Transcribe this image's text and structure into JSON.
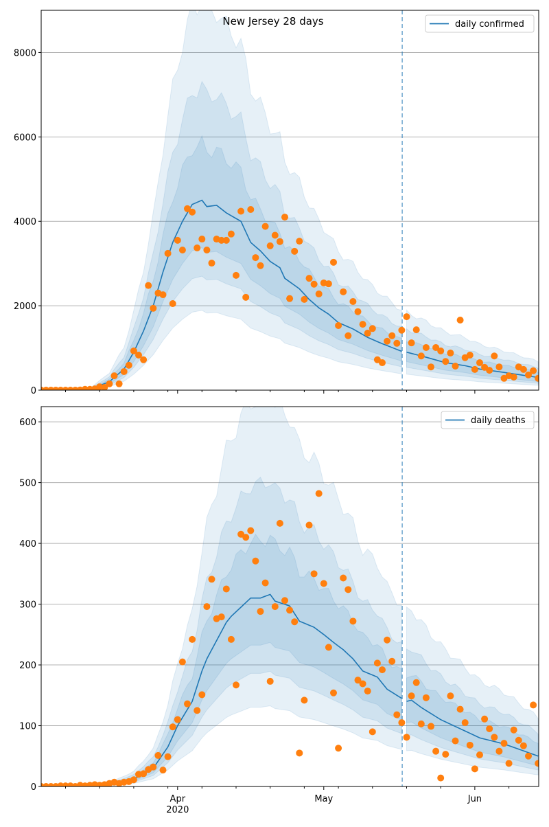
{
  "chart_data": {
    "type": "line",
    "title": "New Jersey 28 days",
    "x_axis": {
      "unit": "days since first plotted day",
      "range": [
        0,
        102
      ],
      "major_ticks": [
        {
          "day": 28,
          "label": "Apr",
          "sublabel": "2020"
        },
        {
          "day": 58,
          "label": "May",
          "sublabel": ""
        },
        {
          "day": 89,
          "label": "Jun",
          "sublabel": ""
        }
      ],
      "minor_tick_days": [
        5,
        12,
        19,
        26,
        33,
        40,
        47,
        54,
        61,
        68,
        75,
        82,
        96
      ],
      "forecast_start_day": 74.1
    },
    "colors": {
      "model": "#1f77b4",
      "observed": "#ff7f0e",
      "band": "#1f77b4",
      "grid": "#b0b0b0"
    },
    "band_multipliers": [
      [
        0.42,
        2.05
      ],
      [
        0.6,
        1.6
      ],
      [
        0.75,
        1.3
      ]
    ],
    "panels": [
      {
        "name": "confirmed",
        "legend": "daily confirmed",
        "legend_position": "top-right",
        "ylim": [
          0,
          9000
        ],
        "yticks": [
          0,
          2000,
          4000,
          6000,
          8000
        ],
        "grid": "horizontal",
        "observed": [
          0,
          0,
          0,
          0,
          0,
          0,
          0,
          0,
          5,
          20,
          20,
          30,
          80,
          65,
          150,
          340,
          150,
          440,
          590,
          930,
          830,
          720,
          2480,
          1940,
          2300,
          2260,
          3240,
          2050,
          3550,
          3320,
          4300,
          4220,
          3370,
          3580,
          3320,
          3010,
          3580,
          3550,
          3550,
          3700,
          2720,
          4240,
          2200,
          4280,
          3140,
          2950,
          3880,
          3420,
          3670,
          3520,
          4100,
          2170,
          3290,
          3530,
          2150,
          2650,
          2510,
          2280,
          2540,
          2520,
          3030,
          1530,
          2330,
          1290,
          2100,
          1860,
          1560,
          1350,
          1460,
          720,
          650,
          1160,
          1290,
          1110,
          1420,
          1740,
          1120,
          1430,
          810,
          1010,
          550,
          1010,
          930,
          680,
          880,
          570,
          1660,
          770,
          830,
          490,
          650,
          540,
          470,
          810,
          550,
          280,
          340,
          310,
          550,
          490,
          360,
          460,
          280
        ],
        "model_fit": [
          [
            0,
            0
          ],
          [
            10,
            20
          ],
          [
            14,
            200
          ],
          [
            17,
            500
          ],
          [
            19,
            900
          ],
          [
            21,
            1400
          ],
          [
            23,
            2000
          ],
          [
            25,
            2800
          ],
          [
            27,
            3500
          ],
          [
            29,
            4000
          ],
          [
            31,
            4400
          ],
          [
            33,
            4500
          ],
          [
            34,
            4350
          ],
          [
            36,
            4380
          ],
          [
            38,
            4200
          ],
          [
            41,
            4000
          ],
          [
            43,
            3500
          ],
          [
            45,
            3300
          ],
          [
            47,
            3050
          ],
          [
            49,
            2900
          ],
          [
            50,
            2650
          ],
          [
            53,
            2400
          ],
          [
            55,
            2150
          ],
          [
            57,
            1950
          ],
          [
            59,
            1800
          ],
          [
            61,
            1600
          ],
          [
            64,
            1450
          ],
          [
            67,
            1250
          ],
          [
            70,
            1100
          ],
          [
            74,
            920
          ]
        ],
        "model_forecast": [
          [
            75,
            900
          ],
          [
            79,
            780
          ],
          [
            83,
            650
          ],
          [
            87,
            580
          ],
          [
            90,
            500
          ],
          [
            95,
            420
          ],
          [
            102,
            300
          ]
        ]
      },
      {
        "name": "deaths",
        "legend": "daily deaths",
        "legend_position": "top-right",
        "ylim": [
          0,
          625
        ],
        "yticks": [
          0,
          100,
          200,
          300,
          400,
          500,
          600
        ],
        "grid": "horizontal",
        "observed": [
          0,
          0,
          0,
          0,
          1,
          1,
          1,
          0,
          2,
          1,
          2,
          3,
          2,
          3,
          5,
          7,
          5,
          7,
          8,
          11,
          20,
          21,
          28,
          32,
          51,
          27,
          49,
          98,
          110,
          205,
          136,
          242,
          125,
          151,
          296,
          341,
          276,
          279,
          325,
          242,
          167,
          415,
          410,
          421,
          371,
          288,
          335,
          173,
          296,
          433,
          306,
          290,
          271,
          55,
          142,
          430,
          350,
          482,
          334,
          229,
          154,
          63,
          343,
          324,
          272,
          175,
          169,
          157,
          90,
          203,
          192,
          241,
          206,
          118,
          105,
          81,
          149,
          171,
          103,
          146,
          99,
          58,
          14,
          53,
          149,
          75,
          127,
          105,
          68,
          29,
          52,
          111,
          95,
          81,
          58,
          71,
          38,
          93,
          76,
          67,
          50,
          134,
          38
        ],
        "model_fit": [
          [
            0,
            0
          ],
          [
            14,
            3
          ],
          [
            19,
            12
          ],
          [
            23,
            30
          ],
          [
            26,
            65
          ],
          [
            28,
            100
          ],
          [
            31,
            140
          ],
          [
            33,
            190
          ],
          [
            34,
            210
          ],
          [
            36,
            240
          ],
          [
            38,
            270
          ],
          [
            39,
            280
          ],
          [
            41,
            295
          ],
          [
            43,
            310
          ],
          [
            45,
            310
          ],
          [
            47,
            316
          ],
          [
            48,
            305
          ],
          [
            51,
            297
          ],
          [
            53,
            272
          ],
          [
            56,
            262
          ],
          [
            58,
            250
          ],
          [
            60,
            237
          ],
          [
            62,
            225
          ],
          [
            64,
            210
          ],
          [
            66,
            190
          ],
          [
            69,
            180
          ],
          [
            71,
            160
          ],
          [
            72,
            155
          ],
          [
            74,
            145
          ]
        ],
        "model_forecast": [
          [
            75,
            140
          ],
          [
            76,
            142
          ],
          [
            78,
            130
          ],
          [
            82,
            110
          ],
          [
            86,
            95
          ],
          [
            90,
            80
          ],
          [
            95,
            70
          ],
          [
            102,
            50
          ]
        ]
      }
    ]
  }
}
